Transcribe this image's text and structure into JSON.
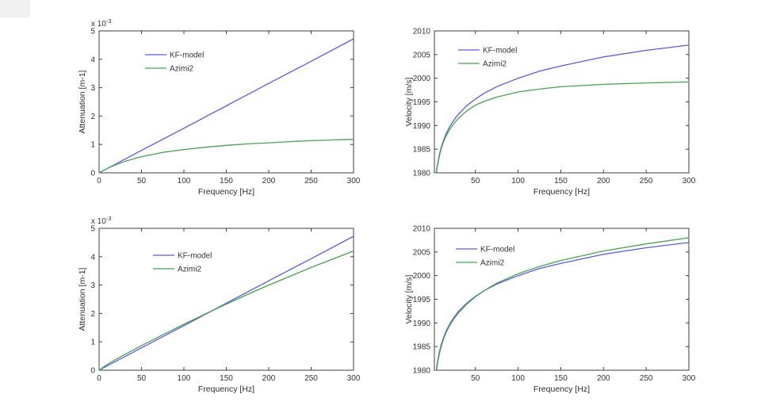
{
  "figure": {
    "background": "#ffffff",
    "frame_color": "#3f3f3f",
    "text_color": "#333333",
    "series_colors": {
      "kf_model": "#5c5cd9",
      "azimi2": "#4aa053"
    }
  },
  "chart_data": [
    {
      "id": "attenuation-top-left",
      "type": "line",
      "xlabel": "Frequency [Hz]",
      "ylabel": "Attenuation [m-1]",
      "y_exponent": {
        "base": "x 10",
        "power": "-3"
      },
      "xlim": [
        0,
        300
      ],
      "ylim": [
        0,
        5
      ],
      "xticks": [
        0,
        50,
        100,
        150,
        200,
        250,
        300
      ],
      "yticks": [
        0,
        1,
        2,
        3,
        4,
        5
      ],
      "legend_position": "northwest",
      "legend": [
        "KF-model",
        "Azimi2"
      ],
      "series": [
        {
          "name": "KF-model",
          "color": "#5c5cd9",
          "x": [
            0,
            50,
            100,
            150,
            200,
            250,
            300
          ],
          "y": [
            0,
            0.79,
            1.57,
            2.36,
            3.15,
            3.93,
            4.72
          ]
        },
        {
          "name": "Azimi2",
          "color": "#4aa053",
          "x": [
            0,
            10,
            20,
            30,
            40,
            50,
            75,
            100,
            125,
            150,
            175,
            200,
            225,
            250,
            275,
            300
          ],
          "y": [
            0,
            0.16,
            0.29,
            0.4,
            0.49,
            0.57,
            0.72,
            0.82,
            0.9,
            0.97,
            1.02,
            1.06,
            1.1,
            1.13,
            1.16,
            1.18
          ]
        }
      ]
    },
    {
      "id": "velocity-top-right",
      "type": "line",
      "xlabel": "Frequency [Hz]",
      "ylabel": "Velocity [m/s]",
      "y_exponent": null,
      "xlim": [
        2,
        300
      ],
      "ylim": [
        1980,
        2010
      ],
      "xticks": [
        50,
        100,
        150,
        200,
        250,
        300
      ],
      "yticks": [
        1980,
        1985,
        1990,
        1995,
        2000,
        2005,
        2010
      ],
      "legend_position": "northwest",
      "legend": [
        "KF-model",
        "Azimi2"
      ],
      "series": [
        {
          "name": "KF-model",
          "color": "#5c5cd9",
          "x": [
            4.3,
            5,
            6,
            8,
            10,
            13,
            16,
            20,
            25,
            30,
            40,
            50,
            60,
            75,
            100,
            125,
            150,
            200,
            250,
            300
          ],
          "y": [
            1980.0,
            1981.0,
            1982.1,
            1984.0,
            1985.4,
            1987.0,
            1988.4,
            1989.8,
            1991.2,
            1992.4,
            1994.2,
            1995.6,
            1996.8,
            1998.2,
            2000.0,
            2001.5,
            2002.6,
            2004.5,
            2005.9,
            2007.0
          ]
        },
        {
          "name": "Azimi2",
          "color": "#4aa053",
          "x": [
            4.5,
            5,
            6,
            8,
            10,
            13,
            16,
            20,
            25,
            30,
            40,
            50,
            60,
            75,
            100,
            125,
            150,
            200,
            250,
            300
          ],
          "y": [
            1980.0,
            1980.8,
            1981.9,
            1983.7,
            1985.1,
            1986.7,
            1987.9,
            1989.2,
            1990.5,
            1991.5,
            1993.1,
            1994.3,
            1995.1,
            1996.0,
            1997.1,
            1997.7,
            1998.2,
            1998.7,
            1999.0,
            1999.2
          ]
        }
      ]
    },
    {
      "id": "attenuation-bottom-left",
      "type": "line",
      "xlabel": "Frequency [Hz]",
      "ylabel": "Attenuation [m-1]",
      "y_exponent": {
        "base": "x 10",
        "power": "-3"
      },
      "xlim": [
        0,
        300
      ],
      "ylim": [
        0,
        5
      ],
      "xticks": [
        0,
        50,
        100,
        150,
        200,
        250,
        300
      ],
      "yticks": [
        0,
        1,
        2,
        3,
        4,
        5
      ],
      "legend_position": "northwest",
      "legend": [
        "KF-model",
        "Azimi2"
      ],
      "series": [
        {
          "name": "KF-model",
          "color": "#5c5cd9",
          "x": [
            0,
            50,
            100,
            150,
            200,
            250,
            300
          ],
          "y": [
            0,
            0.79,
            1.57,
            2.36,
            3.15,
            3.93,
            4.72
          ]
        },
        {
          "name": "Azimi2",
          "color": "#4aa053",
          "x": [
            0,
            10,
            25,
            50,
            75,
            100,
            125,
            150,
            175,
            200,
            250,
            300
          ],
          "y": [
            0,
            0.21,
            0.47,
            0.87,
            1.25,
            1.62,
            1.98,
            2.33,
            2.67,
            3.0,
            3.62,
            4.2
          ]
        }
      ]
    },
    {
      "id": "velocity-bottom-right",
      "type": "line",
      "xlabel": "Frequency [Hz]",
      "ylabel": "Velocity [m/s]",
      "y_exponent": null,
      "xlim": [
        2,
        300
      ],
      "ylim": [
        1980,
        2010
      ],
      "xticks": [
        50,
        100,
        150,
        200,
        250,
        300
      ],
      "yticks": [
        1980,
        1985,
        1990,
        1995,
        2000,
        2005,
        2010
      ],
      "legend_position": "northwest",
      "legend": [
        "KF-model",
        "Azimi2"
      ],
      "series": [
        {
          "name": "KF-model",
          "color": "#5c5cd9",
          "x": [
            4.3,
            5,
            6,
            8,
            10,
            13,
            16,
            20,
            25,
            30,
            40,
            50,
            60,
            75,
            100,
            125,
            150,
            200,
            250,
            300
          ],
          "y": [
            1980.0,
            1981.0,
            1982.1,
            1984.0,
            1985.4,
            1987.0,
            1988.4,
            1989.8,
            1991.2,
            1992.4,
            1994.2,
            1995.6,
            1996.8,
            1998.2,
            2000.0,
            2001.5,
            2002.6,
            2004.5,
            2005.9,
            2007.0
          ]
        },
        {
          "name": "Azimi2",
          "color": "#4aa053",
          "x": [
            4.6,
            5,
            6,
            8,
            10,
            13,
            16,
            20,
            25,
            30,
            40,
            50,
            60,
            75,
            100,
            125,
            150,
            200,
            250,
            300
          ],
          "y": [
            1980.0,
            1980.6,
            1981.8,
            1983.6,
            1985.0,
            1986.7,
            1988.1,
            1989.5,
            1990.9,
            1992.1,
            1994.0,
            1995.5,
            1996.8,
            1998.4,
            2000.4,
            2001.9,
            2003.2,
            2005.2,
            2006.7,
            2008.0
          ]
        }
      ]
    }
  ]
}
